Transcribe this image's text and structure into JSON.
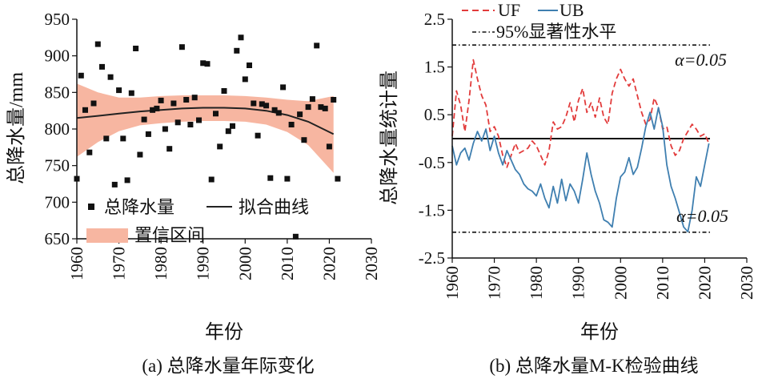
{
  "chart_data": [
    {
      "type": "scatter",
      "caption": "(a) 总降水量年际变化",
      "xlabel": "年份",
      "ylabel": "总降水量/mm",
      "xlim": [
        1960,
        2030
      ],
      "ylim": [
        650,
        950
      ],
      "xticks": [
        "1960",
        "1970",
        "1980",
        "1990",
        "2000",
        "2010",
        "2020",
        "2030"
      ],
      "yticks": [
        "650",
        "700",
        "750",
        "800",
        "850",
        "900",
        "950"
      ],
      "legend": {
        "placement": "bottom-left",
        "points_label": "总降水量",
        "fit_label": "拟合曲线",
        "band_label": "置信区间"
      },
      "series": [
        {
          "name": "总降水量",
          "kind": "points",
          "x": [
            1960,
            1961,
            1962,
            1963,
            1964,
            1965,
            1966,
            1967,
            1968,
            1969,
            1970,
            1971,
            1972,
            1973,
            1974,
            1975,
            1976,
            1977,
            1978,
            1979,
            1980,
            1981,
            1982,
            1983,
            1984,
            1985,
            1986,
            1987,
            1988,
            1989,
            1990,
            1991,
            1992,
            1993,
            1994,
            1995,
            1996,
            1997,
            1998,
            1999,
            2000,
            2001,
            2002,
            2003,
            2004,
            2005,
            2006,
            2007,
            2008,
            2009,
            2010,
            2011,
            2012,
            2013,
            2014,
            2015,
            2016,
            2017,
            2018,
            2019,
            2020,
            2021
          ],
          "y": [
            732,
            873,
            826,
            768,
            835,
            916,
            885,
            787,
            871,
            724,
            853,
            787,
            730,
            849,
            910,
            765,
            813,
            793,
            826,
            828,
            839,
            800,
            773,
            835,
            809,
            912,
            840,
            806,
            843,
            812,
            890,
            889,
            731,
            821,
            776,
            852,
            797,
            804,
            907,
            925,
            868,
            887,
            835,
            791,
            834,
            832,
            733,
            826,
            822,
            857,
            732,
            806,
            653,
            820,
            785,
            830,
            841,
            914,
            830,
            828,
            776,
            840
          ],
          "color": "#111111"
        },
        {
          "name": "拟合曲线",
          "kind": "line",
          "x": [
            1960,
            1965,
            1970,
            1975,
            1980,
            1985,
            1990,
            1995,
            2000,
            2005,
            2010,
            2015,
            2021
          ],
          "y": [
            815,
            818,
            821,
            824,
            826,
            828,
            829,
            829,
            828,
            825,
            819,
            810,
            793
          ],
          "color": "#222222"
        },
        {
          "name": "置信区间",
          "kind": "band",
          "x": [
            1960,
            1965,
            1970,
            1975,
            1980,
            1985,
            1990,
            1995,
            2000,
            2005,
            2010,
            2015,
            2021
          ],
          "upper": [
            862,
            850,
            843,
            843,
            845,
            846,
            846,
            846,
            845,
            843,
            840,
            838,
            845
          ],
          "lower": [
            762,
            782,
            797,
            805,
            808,
            810,
            811,
            811,
            810,
            806,
            796,
            778,
            740
          ],
          "color": "#f7b6a1"
        },
        {
          "name": "extra_point",
          "kind": "points",
          "x": [
            2022
          ],
          "y": [
            732
          ],
          "color": "#111111"
        }
      ]
    },
    {
      "type": "line",
      "caption": "(b) 总降水量M-K检验曲线",
      "xlabel": "年份",
      "ylabel": "总降水量统计量",
      "xlim": [
        1960,
        2030
      ],
      "ylim": [
        -2.5,
        2.5
      ],
      "xticks": [
        "1960",
        "1970",
        "1980",
        "1990",
        "2000",
        "2010",
        "2020",
        "2030"
      ],
      "yticks": [
        "-2.5",
        "-1.5",
        "-0.5",
        "0.5",
        "1.5",
        "2.5"
      ],
      "legend": {
        "placement": "top",
        "uf_label": "UF",
        "ub_label": "UB",
        "sig_label": "95%显著性水平"
      },
      "significance": {
        "upper": 1.96,
        "lower": -1.96,
        "upper_label": "α=0.05",
        "lower_label": "α=0.05"
      },
      "zero_line": 0,
      "series": [
        {
          "name": "UF",
          "color": "#e23b3b",
          "x": [
            1960,
            1961,
            1962,
            1963,
            1964,
            1965,
            1966,
            1967,
            1968,
            1969,
            1970,
            1971,
            1972,
            1973,
            1974,
            1975,
            1976,
            1977,
            1978,
            1979,
            1980,
            1981,
            1982,
            1983,
            1984,
            1985,
            1986,
            1987,
            1988,
            1989,
            1990,
            1991,
            1992,
            1993,
            1994,
            1995,
            1996,
            1997,
            1998,
            1999,
            2000,
            2001,
            2002,
            2003,
            2004,
            2005,
            2006,
            2007,
            2008,
            2009,
            2010,
            2011,
            2012,
            2013,
            2014,
            2015,
            2016,
            2017,
            2018,
            2019,
            2020,
            2021
          ],
          "y": [
            0.05,
            1.0,
            0.7,
            0.15,
            0.8,
            1.65,
            1.25,
            0.9,
            0.7,
            0.15,
            0.25,
            0.05,
            -0.35,
            -0.6,
            -0.35,
            -0.1,
            -0.3,
            -0.25,
            -0.2,
            -0.05,
            -0.15,
            -0.35,
            -0.55,
            -0.25,
            0.35,
            0.2,
            0.25,
            0.45,
            0.75,
            0.35,
            0.8,
            1.05,
            0.55,
            0.75,
            0.45,
            0.85,
            0.45,
            0.3,
            0.95,
            1.25,
            1.45,
            1.25,
            1.1,
            1.25,
            0.9,
            0.55,
            0.3,
            0.4,
            0.85,
            0.65,
            0.2,
            0.25,
            -0.15,
            -0.35,
            -0.25,
            0.0,
            0.15,
            0.3,
            0.2,
            0.05,
            0.1,
            -0.1
          ]
        },
        {
          "name": "UB",
          "color": "#3f7fb0",
          "x": [
            1960,
            1961,
            1962,
            1963,
            1964,
            1965,
            1966,
            1967,
            1968,
            1969,
            1970,
            1971,
            1972,
            1973,
            1974,
            1975,
            1976,
            1977,
            1978,
            1979,
            1980,
            1981,
            1982,
            1983,
            1984,
            1985,
            1986,
            1987,
            1988,
            1989,
            1990,
            1991,
            1992,
            1993,
            1994,
            1995,
            1996,
            1997,
            1998,
            1999,
            2000,
            2001,
            2002,
            2003,
            2004,
            2005,
            2006,
            2007,
            2008,
            2009,
            2010,
            2011,
            2012,
            2013,
            2014,
            2015,
            2016,
            2017,
            2018,
            2019,
            2020,
            2021
          ],
          "y": [
            -0.15,
            -0.55,
            -0.3,
            -0.2,
            -0.45,
            -0.1,
            0.15,
            -0.05,
            0.2,
            -0.25,
            0.05,
            -0.3,
            -0.55,
            -0.25,
            -0.45,
            -0.65,
            -0.75,
            -0.95,
            -1.05,
            -1.1,
            -1.2,
            -0.95,
            -1.25,
            -1.45,
            -1.0,
            -1.35,
            -0.85,
            -1.3,
            -0.95,
            -1.1,
            -1.35,
            -0.85,
            -0.3,
            -0.75,
            -1.1,
            -1.35,
            -1.7,
            -1.75,
            -1.85,
            -1.25,
            -0.8,
            -0.7,
            -0.4,
            -0.75,
            -0.6,
            -0.2,
            0.25,
            0.55,
            0.2,
            0.65,
            0.25,
            -0.55,
            -1.0,
            -1.25,
            -1.55,
            -1.85,
            -1.95,
            -1.5,
            -0.8,
            -1.0,
            -0.55,
            -0.1
          ]
        }
      ]
    }
  ]
}
